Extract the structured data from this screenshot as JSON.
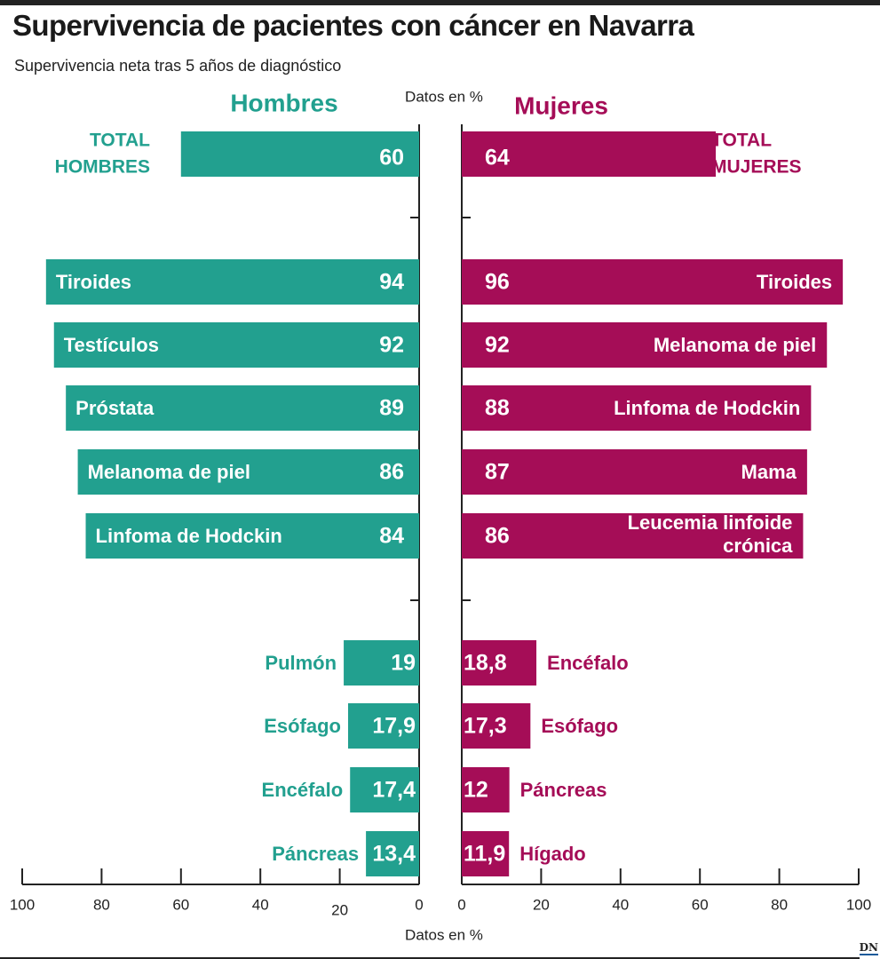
{
  "title": "Supervivencia de pacientes con cáncer en Navarra",
  "subtitle": "Supervivencia neta tras 5 años de diagnóstico",
  "brand": "DN",
  "chart_data": {
    "type": "bar",
    "orientation": "horizontal-butterfly",
    "unit_top_label": "Datos en %",
    "unit_bottom_label": "Datos en %",
    "xlim": [
      0,
      100
    ],
    "ticks": [
      0,
      20,
      40,
      60,
      80,
      100
    ],
    "colors": {
      "hombres": "#22a08f",
      "mujeres": "#a50d57",
      "axis": "#222222"
    },
    "left": {
      "name": "Hombres",
      "total": {
        "label_line1": "TOTAL",
        "label_line2": "HOMBRES",
        "value": 60,
        "display": "60"
      },
      "top": [
        {
          "label": "Tiroides",
          "value": 94,
          "display": "94"
        },
        {
          "label": "Testículos",
          "value": 92,
          "display": "92"
        },
        {
          "label": "Próstata",
          "value": 89,
          "display": "89"
        },
        {
          "label": "Melanoma de piel",
          "value": 86,
          "display": "86"
        },
        {
          "label": "Linfoma de Hodckin",
          "value": 84,
          "display": "84"
        }
      ],
      "bottom": [
        {
          "label": "Pulmón",
          "value": 19,
          "display": "19"
        },
        {
          "label": "Esófago",
          "value": 17.9,
          "display": "17,9"
        },
        {
          "label": "Encéfalo",
          "value": 17.4,
          "display": "17,4"
        },
        {
          "label": "Páncreas",
          "value": 13.4,
          "display": "13,4"
        }
      ]
    },
    "right": {
      "name": "Mujeres",
      "total": {
        "label_line1": "TOTAL",
        "label_line2": "MUJERES",
        "value": 64,
        "display": "64"
      },
      "top": [
        {
          "label": "Tiroides",
          "value": 96,
          "display": "96"
        },
        {
          "label": "Melanoma de piel",
          "value": 92,
          "display": "92"
        },
        {
          "label": "Linfoma de Hodckin",
          "value": 88,
          "display": "88"
        },
        {
          "label": "Mama",
          "value": 87,
          "display": "87"
        },
        {
          "label_line1": "Leucemia linfoide",
          "label_line2": "crónica",
          "value": 86,
          "display": "86"
        }
      ],
      "bottom": [
        {
          "label": "Encéfalo",
          "value": 18.8,
          "display": "18,8"
        },
        {
          "label": "Esófago",
          "value": 17.3,
          "display": "17,3"
        },
        {
          "label": "Páncreas",
          "value": 12,
          "display": "12"
        },
        {
          "label": "Hígado",
          "value": 11.9,
          "display": "11,9"
        }
      ]
    }
  }
}
